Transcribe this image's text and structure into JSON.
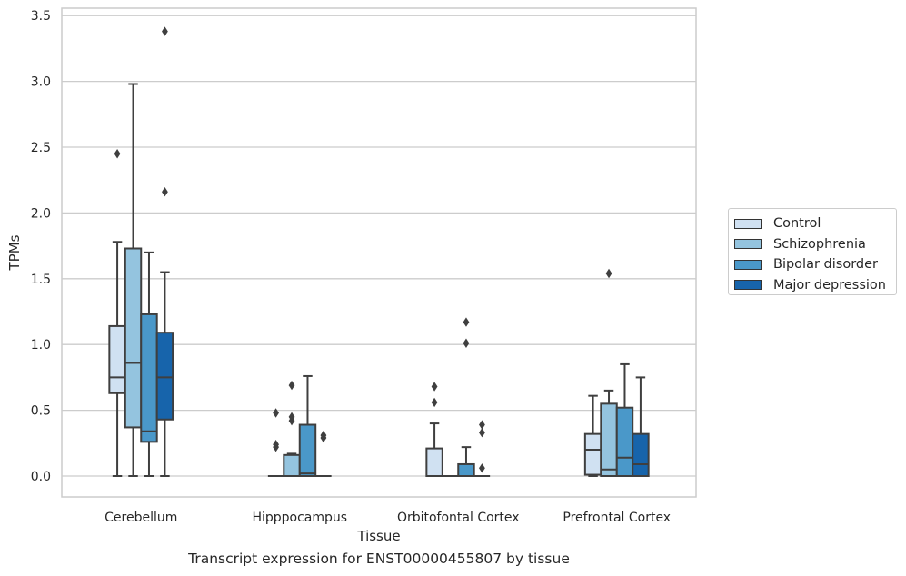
{
  "chart_data": {
    "type": "box",
    "title": "",
    "caption": "Transcript expression for ENST00000455807 by tissue",
    "xlabel": "Tissue",
    "ylabel": "TPMs",
    "ylim": [
      -0.17,
      3.56
    ],
    "yticks": [
      "0.0",
      "0.5",
      "1.0",
      "1.5",
      "2.0",
      "2.5",
      "3.0",
      "3.5"
    ],
    "grid": true,
    "legend_position": "right",
    "categories": [
      "Cerebellum",
      "Hipppocampus",
      "Orbitofontal Cortex",
      "Prefrontal Cortex"
    ],
    "series": [
      {
        "name": "Control",
        "color": "#d0e1f2",
        "boxes": [
          {
            "whislo": 0.0,
            "q1": 0.63,
            "med": 0.75,
            "q3": 1.14,
            "whishi": 1.78,
            "fliers": [
              2.45
            ]
          },
          {
            "whislo": 0.0,
            "q1": 0.0,
            "med": 0.0,
            "q3": 0.0,
            "whishi": 0.0,
            "fliers": [
              0.48,
              0.24,
              0.22
            ]
          },
          {
            "whislo": 0.0,
            "q1": 0.0,
            "med": 0.0,
            "q3": 0.21,
            "whishi": 0.4,
            "fliers": [
              0.68,
              0.56
            ]
          },
          {
            "whislo": 0.0,
            "q1": 0.01,
            "med": 0.2,
            "q3": 0.32,
            "whishi": 0.61,
            "fliers": []
          }
        ]
      },
      {
        "name": "Schizophrenia",
        "color": "#94c4df",
        "boxes": [
          {
            "whislo": 0.0,
            "q1": 0.37,
            "med": 0.86,
            "q3": 1.73,
            "whishi": 2.98,
            "fliers": []
          },
          {
            "whislo": 0.0,
            "q1": 0.0,
            "med": 0.0,
            "q3": 0.16,
            "whishi": 0.17,
            "fliers": [
              0.69,
              0.45,
              0.42
            ]
          },
          {
            "whislo": 0.0,
            "q1": 0.0,
            "med": 0.0,
            "q3": 0.0,
            "whishi": 0.0,
            "fliers": []
          },
          {
            "whislo": 0.0,
            "q1": 0.0,
            "med": 0.05,
            "q3": 0.55,
            "whishi": 0.65,
            "fliers": [
              1.54
            ]
          }
        ]
      },
      {
        "name": "Bipolar disorder",
        "color": "#4a98c9",
        "boxes": [
          {
            "whislo": 0.0,
            "q1": 0.26,
            "med": 0.34,
            "q3": 1.23,
            "whishi": 1.7,
            "fliers": []
          },
          {
            "whislo": 0.0,
            "q1": 0.0,
            "med": 0.02,
            "q3": 0.39,
            "whishi": 0.76,
            "fliers": []
          },
          {
            "whislo": 0.0,
            "q1": 0.0,
            "med": 0.0,
            "q3": 0.09,
            "whishi": 0.22,
            "fliers": [
              1.17,
              1.01
            ]
          },
          {
            "whislo": 0.0,
            "q1": 0.0,
            "med": 0.14,
            "q3": 0.52,
            "whishi": 0.85,
            "fliers": []
          }
        ]
      },
      {
        "name": "Major depression",
        "color": "#1764ab",
        "boxes": [
          {
            "whislo": 0.0,
            "q1": 0.43,
            "med": 0.75,
            "q3": 1.09,
            "whishi": 1.55,
            "fliers": [
              3.38,
              2.16
            ]
          },
          {
            "whislo": 0.0,
            "q1": 0.0,
            "med": 0.0,
            "q3": 0.0,
            "whishi": 0.0,
            "fliers": [
              0.31,
              0.29
            ]
          },
          {
            "whislo": 0.0,
            "q1": 0.0,
            "med": 0.0,
            "q3": 0.0,
            "whishi": 0.0,
            "fliers": [
              0.39,
              0.33,
              0.06
            ]
          },
          {
            "whislo": 0.0,
            "q1": 0.0,
            "med": 0.09,
            "q3": 0.32,
            "whishi": 0.75,
            "fliers": []
          }
        ]
      }
    ]
  }
}
